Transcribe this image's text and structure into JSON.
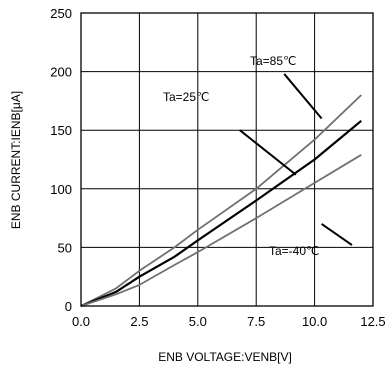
{
  "chart_data": {
    "type": "line",
    "xlabel": "ENB VOLTAGE:VENB[V]",
    "ylabel": "ENB CURRENT:IENB[μA]",
    "xlim": [
      0,
      12.5
    ],
    "ylim": [
      0,
      250
    ],
    "x_ticks": [
      "0.0",
      "2.5",
      "5.0",
      "7.5",
      "10.0",
      "12.5"
    ],
    "y_ticks": [
      "0",
      "50",
      "100",
      "150",
      "200",
      "250"
    ],
    "grid": true,
    "series": [
      {
        "name": "Ta=85℃",
        "color": "#707070",
        "x": [
          0,
          1.5,
          2.5,
          4,
          5,
          7.5,
          10,
          12
        ],
        "y": [
          0,
          15,
          30,
          50,
          65,
          100,
          142,
          180
        ]
      },
      {
        "name": "Ta=25℃",
        "color": "#000000",
        "x": [
          0,
          1.5,
          2.5,
          4,
          5,
          7.5,
          10,
          12
        ],
        "y": [
          0,
          12,
          25,
          42,
          56,
          90,
          125,
          158
        ]
      },
      {
        "name": "Ta=-40℃",
        "color": "#707070",
        "x": [
          0,
          1.5,
          2.5,
          4,
          5,
          7.5,
          10,
          12
        ],
        "y": [
          0,
          10,
          18,
          35,
          46,
          75,
          105,
          129
        ]
      }
    ],
    "annotations": [
      "Ta=85℃",
      "Ta=25℃",
      "Ta=-40℃"
    ]
  }
}
